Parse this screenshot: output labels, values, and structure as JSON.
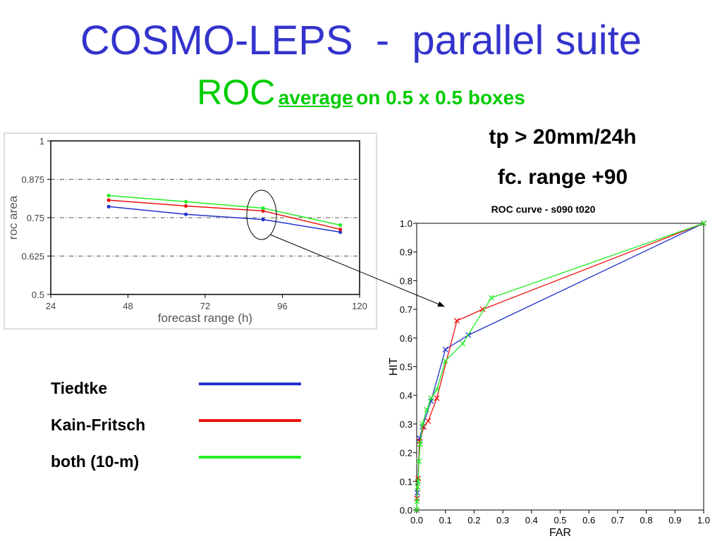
{
  "slide": {
    "title": "COSMO-LEPS  -  parallel suite",
    "subtitle_roc": "ROC",
    "subtitle_average": "average",
    "subtitle_rest": "on 0.5 x 0.5 boxes",
    "condition_threshold": "tp > 20mm/24h",
    "condition_range": "fc. range +90",
    "legend": [
      {
        "label": "Tiedtke",
        "color": "#2233cc"
      },
      {
        "label": "Kain-Fritsch",
        "color": "#ee1111"
      },
      {
        "label": "both (10-m)",
        "color": "#22ee22"
      }
    ]
  },
  "chart_data": [
    {
      "type": "line",
      "title": "",
      "xlabel": "forecast range (h)",
      "ylabel": "roc area",
      "xlim": [
        24,
        120
      ],
      "ylim": [
        0.5,
        1
      ],
      "xticks": [
        "24",
        "48",
        "72",
        "96",
        "120"
      ],
      "yticks": [
        "0.5",
        "0.625",
        "0.75",
        "0.875",
        "1"
      ],
      "grid": "dash-dot horizontal",
      "x": [
        42,
        66,
        90,
        114
      ],
      "series": [
        {
          "name": "Tiedtke",
          "color": "#2233cc",
          "values": [
            0.786,
            0.761,
            0.744,
            0.703
          ]
        },
        {
          "name": "Kain-Fritsch",
          "color": "#ee1111",
          "values": [
            0.807,
            0.788,
            0.772,
            0.712
          ]
        },
        {
          "name": "both (10-m)",
          "color": "#22ee22",
          "values": [
            0.822,
            0.802,
            0.781,
            0.726
          ]
        }
      ],
      "annotation": "circle around forecast range 90"
    },
    {
      "type": "line",
      "title": "ROC curve - s090 t020",
      "xlabel": "FAR",
      "ylabel": "HIT",
      "xlim": [
        0.0,
        1.0
      ],
      "ylim": [
        0.0,
        1.0
      ],
      "xticks": [
        "0.0",
        "0.1",
        "0.2",
        "0.3",
        "0.4",
        "0.5",
        "0.6",
        "0.7",
        "0.8",
        "0.9",
        "1.0"
      ],
      "yticks": [
        "0.0",
        "0.1",
        "0.2",
        "0.3",
        "0.4",
        "0.5",
        "0.6",
        "0.7",
        "0.8",
        "0.9",
        "1.0"
      ],
      "marker": "x",
      "series": [
        {
          "name": "Tiedtke",
          "color": "#2233cc",
          "points": [
            [
              0.0,
              0.0
            ],
            [
              0.001,
              0.04
            ],
            [
              0.002,
              0.06
            ],
            [
              0.004,
              0.1
            ],
            [
              0.01,
              0.25
            ],
            [
              0.02,
              0.29
            ],
            [
              0.05,
              0.38
            ],
            [
              0.1,
              0.56
            ],
            [
              0.18,
              0.61
            ],
            [
              1.0,
              1.0
            ]
          ]
        },
        {
          "name": "Kain-Fritsch",
          "color": "#ee1111",
          "points": [
            [
              0.0,
              0.0
            ],
            [
              0.001,
              0.04
            ],
            [
              0.003,
              0.08
            ],
            [
              0.005,
              0.11
            ],
            [
              0.01,
              0.24
            ],
            [
              0.025,
              0.29
            ],
            [
              0.04,
              0.31
            ],
            [
              0.07,
              0.39
            ],
            [
              0.14,
              0.66
            ],
            [
              0.23,
              0.7
            ],
            [
              1.0,
              1.0
            ]
          ]
        },
        {
          "name": "both (10-m)",
          "color": "#22ee22",
          "points": [
            [
              0.0,
              0.0
            ],
            [
              0.001,
              0.03
            ],
            [
              0.003,
              0.08
            ],
            [
              0.005,
              0.1
            ],
            [
              0.008,
              0.17
            ],
            [
              0.012,
              0.23
            ],
            [
              0.02,
              0.3
            ],
            [
              0.035,
              0.35
            ],
            [
              0.05,
              0.39
            ],
            [
              0.07,
              0.42
            ],
            [
              0.1,
              0.52
            ],
            [
              0.16,
              0.58
            ],
            [
              0.26,
              0.74
            ],
            [
              1.0,
              1.0
            ]
          ]
        }
      ]
    }
  ]
}
